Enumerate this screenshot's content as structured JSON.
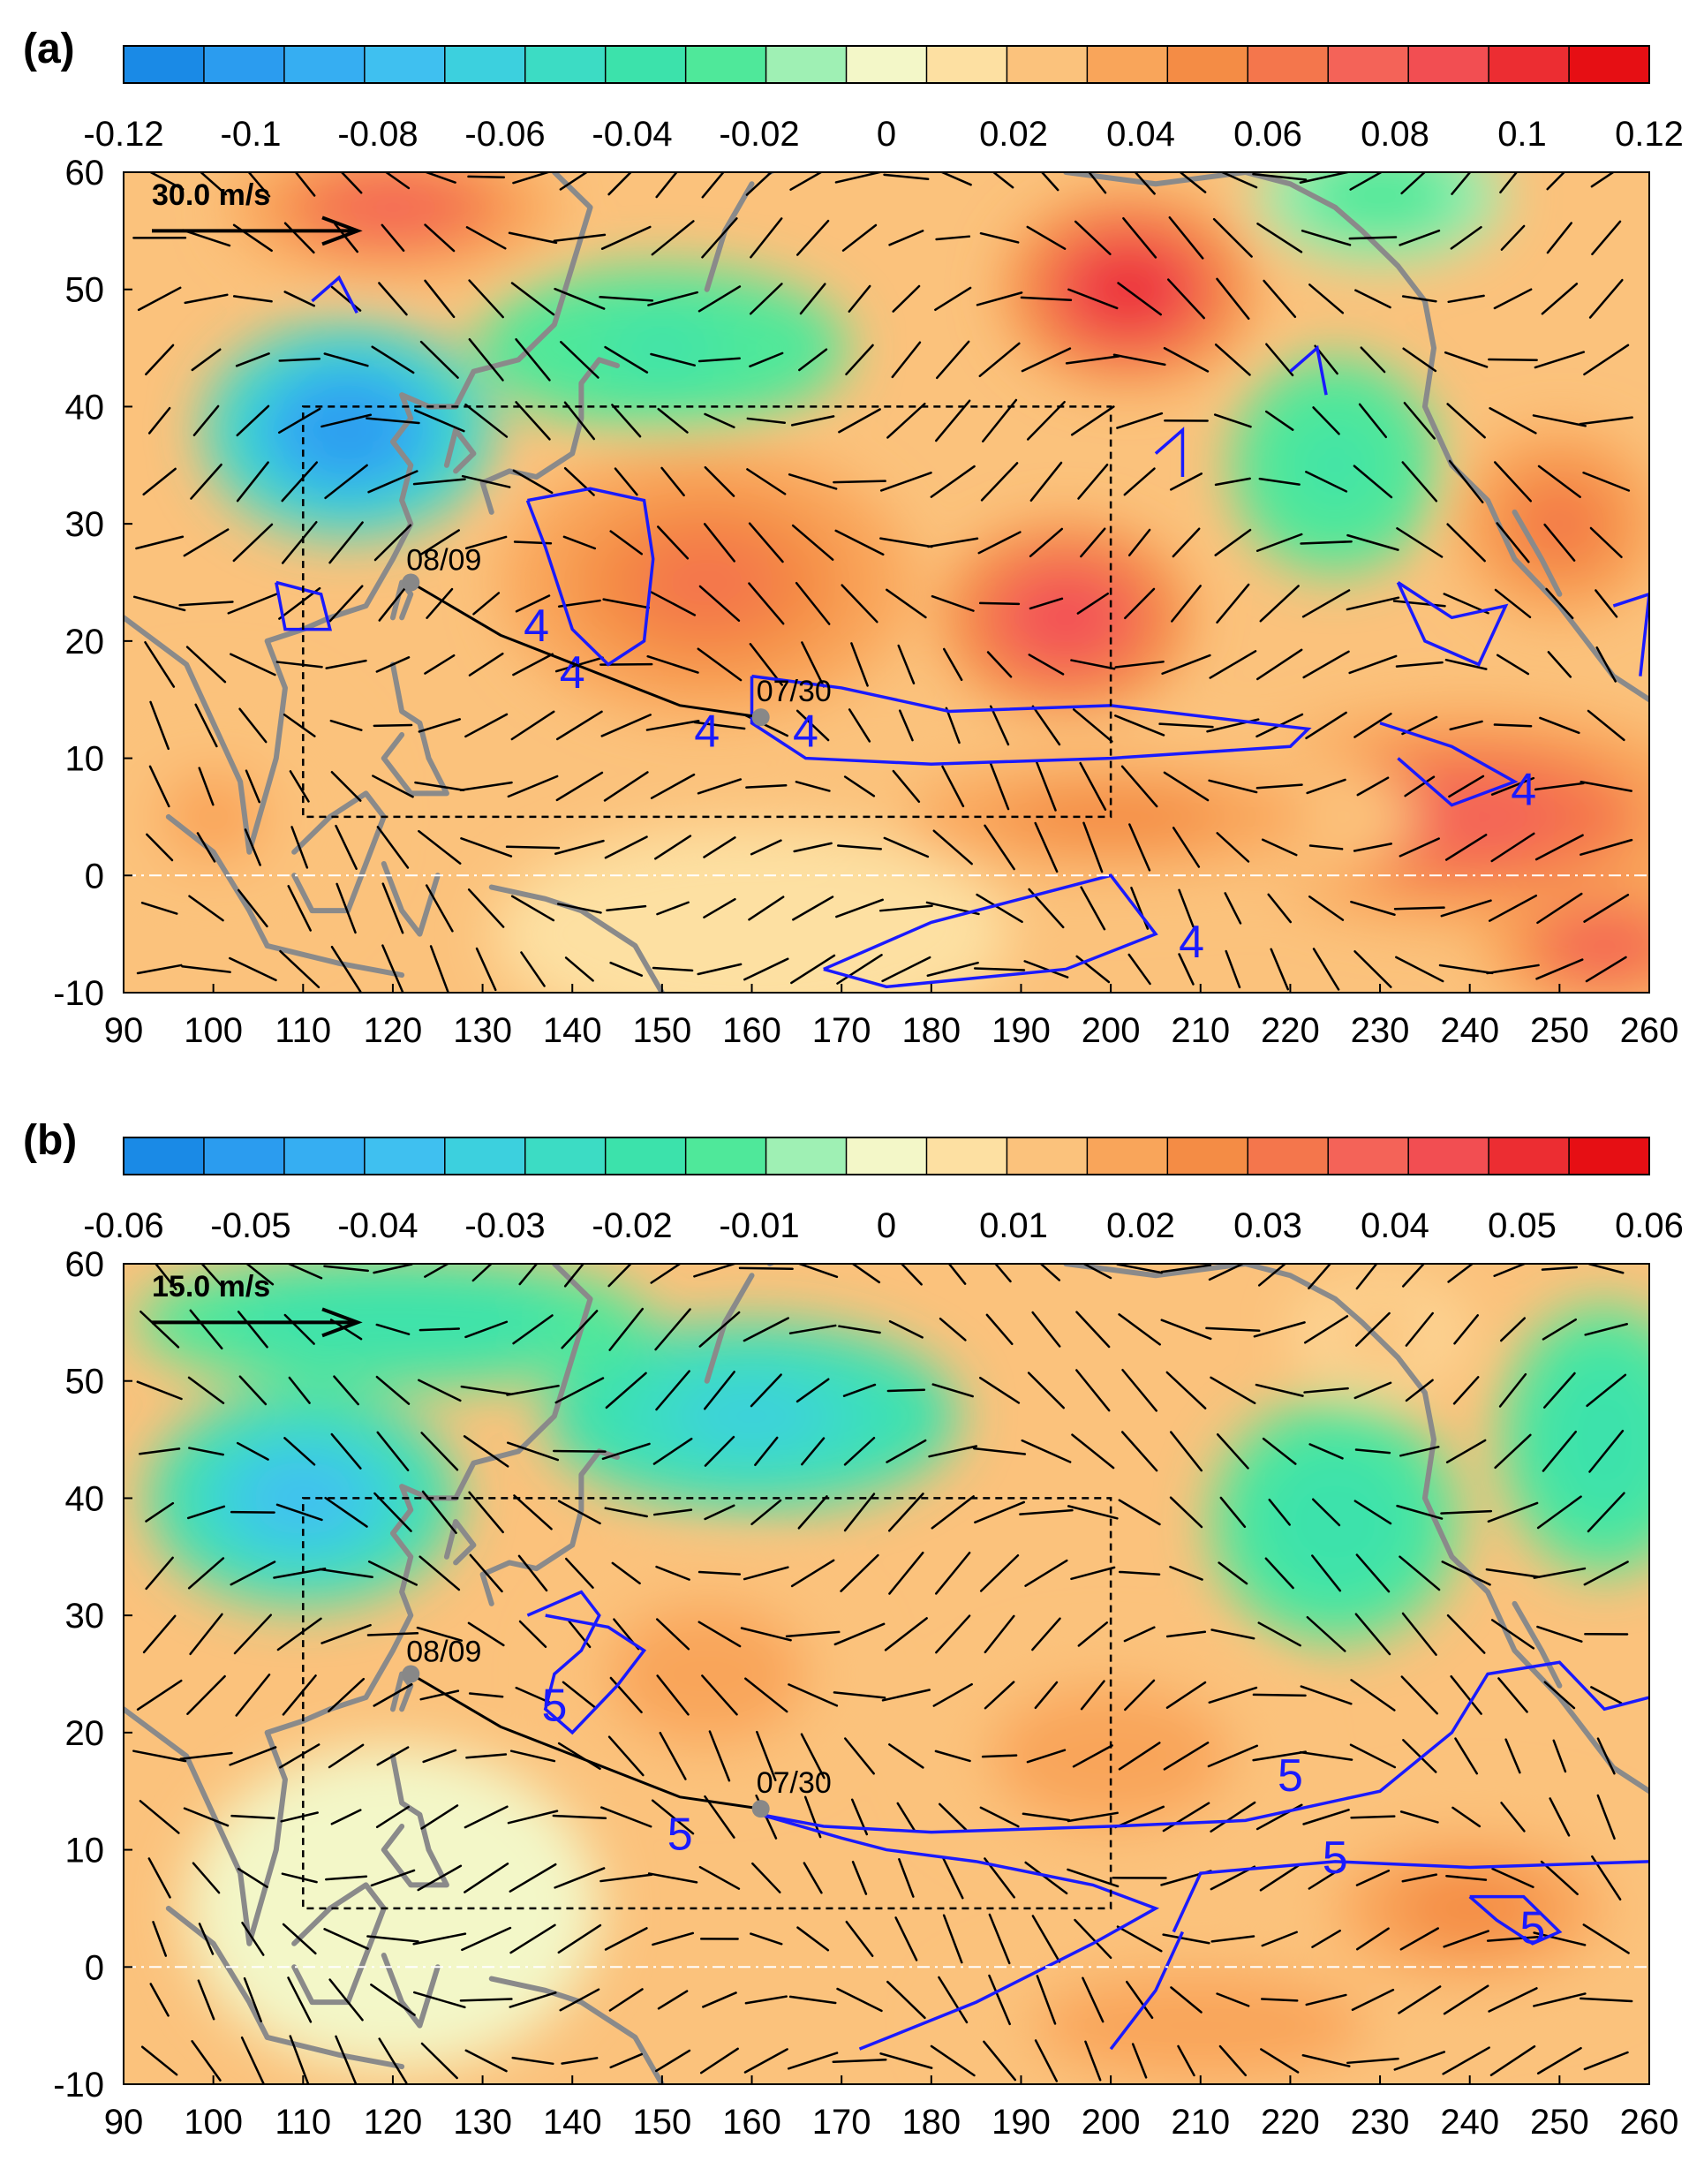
{
  "colors": {
    "colorbar": [
      "#1a8ae6",
      "#2b9cef",
      "#36aef2",
      "#3fc0f0",
      "#3cd0de",
      "#3cdcc4",
      "#3ce2ab",
      "#4fe89a",
      "#9ff0b4",
      "#f3f7c8",
      "#fde0a2",
      "#fbc27c",
      "#f9a55a",
      "#f48c45",
      "#f4764c",
      "#f46358",
      "#f24e52",
      "#ec2d32",
      "#e60f14"
    ],
    "contour": "#1a1aff",
    "coast": "#8a8a8a",
    "track": "#000000",
    "box": "#000000",
    "equator": "#ffffff"
  },
  "chart_data": [
    {
      "type": "heatmap",
      "panel_label": "(a)",
      "colorbar_ticks": [
        "-0.12",
        "-0.1",
        "-0.08",
        "-0.06",
        "-0.04",
        "-0.02",
        "0",
        "0.02",
        "0.04",
        "0.06",
        "0.08",
        "0.1",
        "0.12"
      ],
      "colorbar_range": [
        -0.12,
        0.12
      ],
      "xlim": [
        90,
        260
      ],
      "ylim": [
        -10,
        60
      ],
      "xticks": [
        "90",
        "100",
        "110",
        "120",
        "130",
        "140",
        "150",
        "160",
        "170",
        "180",
        "190",
        "200",
        "210",
        "220",
        "230",
        "240",
        "250",
        "260"
      ],
      "yticks": [
        "60",
        "50",
        "40",
        "30",
        "20",
        "10",
        "0",
        "-10"
      ],
      "vector_reference": "30.0 m/s",
      "contour_level": "4",
      "track": {
        "start_label": "07/30",
        "end_label": "08/09",
        "points": [
          [
            161,
            13.5
          ],
          [
            152,
            14.5
          ],
          [
            142,
            17.5
          ],
          [
            132,
            20.5
          ],
          [
            122,
            25
          ]
        ]
      },
      "box": {
        "lon": [
          110,
          200
        ],
        "lat": [
          5,
          40
        ]
      },
      "field_blobs": [
        {
          "lon": 115,
          "lat": 38,
          "value": -0.1,
          "rlon": 14,
          "rlat": 8
        },
        {
          "lon": 150,
          "lat": 45,
          "value": -0.035,
          "rlon": 18,
          "rlat": 6
        },
        {
          "lon": 225,
          "lat": 35,
          "value": -0.035,
          "rlon": 10,
          "rlat": 8
        },
        {
          "lon": 230,
          "lat": 58,
          "value": -0.03,
          "rlon": 12,
          "rlat": 5
        },
        {
          "lon": 202,
          "lat": 50,
          "value": 0.1,
          "rlon": 12,
          "rlat": 7
        },
        {
          "lon": 195,
          "lat": 22,
          "value": 0.09,
          "rlon": 12,
          "rlat": 7
        },
        {
          "lon": 155,
          "lat": 25,
          "value": 0.06,
          "rlon": 20,
          "rlat": 10
        },
        {
          "lon": 120,
          "lat": 57,
          "value": 0.07,
          "rlon": 16,
          "rlat": 5
        },
        {
          "lon": 250,
          "lat": 30,
          "value": 0.06,
          "rlon": 10,
          "rlat": 7
        },
        {
          "lon": 240,
          "lat": 5,
          "value": 0.07,
          "rlon": 25,
          "rlat": 8
        },
        {
          "lon": 200,
          "lat": 5,
          "value": 0.05,
          "rlon": 30,
          "rlat": 6
        },
        {
          "lon": 255,
          "lat": -6,
          "value": 0.08,
          "rlon": 12,
          "rlat": 5
        },
        {
          "lon": 160,
          "lat": -5,
          "value": 0.015,
          "rlon": 25,
          "rlat": 8
        },
        {
          "lon": 100,
          "lat": 5,
          "value": 0.035,
          "rlon": 15,
          "rlat": 10
        }
      ]
    },
    {
      "type": "heatmap",
      "panel_label": "(b)",
      "colorbar_ticks": [
        "-0.06",
        "-0.05",
        "-0.04",
        "-0.03",
        "-0.02",
        "-0.01",
        "0",
        "0.01",
        "0.02",
        "0.03",
        "0.04",
        "0.05",
        "0.06"
      ],
      "colorbar_range": [
        -0.06,
        0.06
      ],
      "xlim": [
        90,
        260
      ],
      "ylim": [
        -10,
        60
      ],
      "xticks": [
        "90",
        "100",
        "110",
        "120",
        "130",
        "140",
        "150",
        "160",
        "170",
        "180",
        "190",
        "200",
        "210",
        "220",
        "230",
        "240",
        "250",
        "260"
      ],
      "yticks": [
        "60",
        "50",
        "40",
        "30",
        "20",
        "10",
        "0",
        "-10"
      ],
      "vector_reference": "15.0 m/s",
      "contour_level": "5",
      "track": {
        "start_label": "07/30",
        "end_label": "08/09",
        "points": [
          [
            161,
            13.5
          ],
          [
            152,
            14.5
          ],
          [
            142,
            17.5
          ],
          [
            132,
            20.5
          ],
          [
            122,
            25
          ]
        ]
      },
      "box": {
        "lon": [
          110,
          200
        ],
        "lat": [
          5,
          40
        ]
      },
      "field_blobs": [
        {
          "lon": 110,
          "lat": 40,
          "value": -0.038,
          "rlon": 15,
          "rlat": 8
        },
        {
          "lon": 160,
          "lat": 47,
          "value": -0.032,
          "rlon": 20,
          "rlat": 7
        },
        {
          "lon": 120,
          "lat": 55,
          "value": -0.02,
          "rlon": 25,
          "rlat": 5
        },
        {
          "lon": 225,
          "lat": 38,
          "value": -0.022,
          "rlon": 12,
          "rlat": 9
        },
        {
          "lon": 255,
          "lat": 45,
          "value": -0.02,
          "rlon": 10,
          "rlat": 10
        },
        {
          "lon": 155,
          "lat": 25,
          "value": 0.022,
          "rlon": 15,
          "rlat": 8
        },
        {
          "lon": 200,
          "lat": 18,
          "value": 0.02,
          "rlon": 18,
          "rlat": 8
        },
        {
          "lon": 240,
          "lat": 5,
          "value": 0.025,
          "rlon": 20,
          "rlat": 8
        },
        {
          "lon": 230,
          "lat": 54,
          "value": 0.015,
          "rlon": 8,
          "rlat": 4
        },
        {
          "lon": 210,
          "lat": -5,
          "value": 0.02,
          "rlon": 25,
          "rlat": 6
        },
        {
          "lon": 120,
          "lat": 5,
          "value": 0.003,
          "rlon": 20,
          "rlat": 12
        }
      ]
    }
  ]
}
